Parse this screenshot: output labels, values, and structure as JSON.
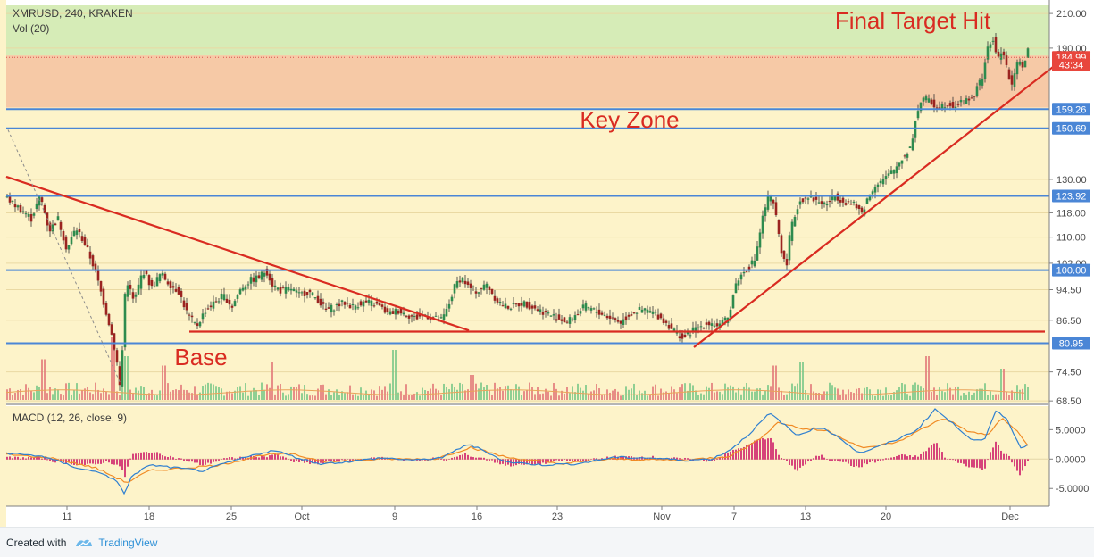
{
  "chart_data": [
    {
      "type": "candlestick",
      "title": "XMRUSD, 240, KRAKEN",
      "subtitle": "Vol (20)",
      "y_axis": {
        "scale": "log",
        "ylim": [
          68,
          215
        ],
        "ticks": [
          "210.00",
          "190.00",
          "130.00",
          "118.00",
          "110.00",
          "102.00",
          "94.50",
          "86.50",
          "74.50",
          "68.50"
        ]
      },
      "x_axis": {
        "ticks": [
          "11",
          "18",
          "25",
          "Oct",
          "9",
          "16",
          "23",
          "Nov",
          "7",
          "13",
          "20",
          "Dec"
        ]
      },
      "price_path": [
        [
          0,
          124
        ],
        [
          10,
          121
        ],
        [
          20,
          119
        ],
        [
          30,
          116
        ],
        [
          40,
          124
        ],
        [
          50,
          112
        ],
        [
          60,
          116
        ],
        [
          70,
          106
        ],
        [
          80,
          113
        ],
        [
          90,
          108
        ],
        [
          100,
          101
        ],
        [
          110,
          92
        ],
        [
          118,
          85
        ],
        [
          125,
          78
        ],
        [
          130,
          70
        ],
        [
          136,
          98
        ],
        [
          145,
          91
        ],
        [
          155,
          100
        ],
        [
          165,
          95
        ],
        [
          175,
          99
        ],
        [
          185,
          96
        ],
        [
          195,
          94
        ],
        [
          205,
          88
        ],
        [
          215,
          85
        ],
        [
          225,
          89
        ],
        [
          235,
          91
        ],
        [
          245,
          93
        ],
        [
          255,
          90
        ],
        [
          265,
          95
        ],
        [
          275,
          97
        ],
        [
          285,
          98
        ],
        [
          293,
          100
        ],
        [
          300,
          96
        ],
        [
          310,
          94
        ],
        [
          320,
          95
        ],
        [
          330,
          93
        ],
        [
          340,
          94
        ],
        [
          350,
          92
        ],
        [
          360,
          89
        ],
        [
          370,
          90
        ],
        [
          380,
          91
        ],
        [
          390,
          90
        ],
        [
          400,
          91
        ],
        [
          410,
          91
        ],
        [
          420,
          90
        ],
        [
          430,
          88
        ],
        [
          440,
          89
        ],
        [
          450,
          88
        ],
        [
          460,
          87
        ],
        [
          470,
          88
        ],
        [
          480,
          87
        ],
        [
          490,
          86.5
        ],
        [
          497,
          90
        ],
        [
          505,
          96
        ],
        [
          512,
          98
        ],
        [
          520,
          95
        ],
        [
          530,
          94
        ],
        [
          540,
          96
        ],
        [
          550,
          92
        ],
        [
          560,
          90
        ],
        [
          570,
          90
        ],
        [
          580,
          91
        ],
        [
          590,
          90
        ],
        [
          600,
          89
        ],
        [
          610,
          88
        ],
        [
          620,
          87
        ],
        [
          630,
          86
        ],
        [
          640,
          88
        ],
        [
          650,
          90
        ],
        [
          660,
          89
        ],
        [
          670,
          88
        ],
        [
          680,
          87
        ],
        [
          690,
          86
        ],
        [
          700,
          88
        ],
        [
          710,
          89
        ],
        [
          720,
          89
        ],
        [
          730,
          88
        ],
        [
          740,
          86
        ],
        [
          750,
          84
        ],
        [
          760,
          82
        ],
        [
          770,
          84
        ],
        [
          780,
          85
        ],
        [
          790,
          86
        ],
        [
          800,
          85
        ],
        [
          810,
          87
        ],
        [
          815,
          92
        ],
        [
          820,
          97
        ],
        [
          830,
          100
        ],
        [
          840,
          103
        ],
        [
          845,
          110
        ],
        [
          850,
          118
        ],
        [
          856,
          124
        ],
        [
          862,
          120
        ],
        [
          870,
          106
        ],
        [
          875,
          100
        ],
        [
          880,
          112
        ],
        [
          890,
          122
        ],
        [
          900,
          124
        ],
        [
          910,
          122
        ],
        [
          920,
          121
        ],
        [
          930,
          124
        ],
        [
          940,
          122
        ],
        [
          950,
          121
        ],
        [
          960,
          118
        ],
        [
          968,
          124
        ],
        [
          975,
          128
        ],
        [
          985,
          130
        ],
        [
          995,
          133
        ],
        [
          1005,
          138
        ],
        [
          1015,
          143
        ],
        [
          1022,
          158
        ],
        [
          1028,
          165
        ],
        [
          1035,
          163
        ],
        [
          1045,
          160
        ],
        [
          1055,
          162
        ],
        [
          1065,
          161
        ],
        [
          1075,
          163
        ],
        [
          1085,
          165
        ],
        [
          1095,
          175
        ],
        [
          1100,
          188
        ],
        [
          1107,
          195
        ],
        [
          1112,
          183
        ],
        [
          1118,
          190
        ],
        [
          1122,
          180
        ],
        [
          1127,
          170
        ],
        [
          1131,
          175
        ],
        [
          1136,
          185
        ],
        [
          1141,
          180
        ],
        [
          1146,
          188
        ]
      ],
      "volume_spikes": [
        [
          41,
          0.65
        ],
        [
          118,
          1.0
        ],
        [
          133,
          0.7
        ],
        [
          175,
          0.55
        ],
        [
          297,
          0.6
        ],
        [
          433,
          0.8
        ],
        [
          520,
          0.4
        ],
        [
          860,
          0.55
        ],
        [
          890,
          0.6
        ],
        [
          1030,
          0.7
        ],
        [
          1115,
          0.5
        ]
      ],
      "horizontal_levels": [
        {
          "label": "184.99",
          "value": 184.99,
          "color": "#e8463d"
        },
        {
          "label": "43:34",
          "value": 181.0,
          "color": "#e8463d"
        },
        {
          "label": "159.26",
          "value": 159.26,
          "color": "#4a86d6"
        },
        {
          "label": "150.69",
          "value": 150.69,
          "color": "#4a86d6"
        },
        {
          "label": "123.92",
          "value": 123.92,
          "color": "#4a86d6"
        },
        {
          "label": "100.00",
          "value": 100.0,
          "color": "#4a86d6"
        },
        {
          "label": "80.95",
          "value": 80.95,
          "color": "#4a86d6"
        }
      ],
      "zones": [
        {
          "from": 186,
          "to": 215,
          "color": "#d4ebb6"
        },
        {
          "from": 160,
          "to": 186,
          "color": "#f5c6a4"
        }
      ],
      "trendlines": [
        {
          "p1": [
            0,
            131
          ],
          "p2": [
            518,
            84
          ],
          "color": "#d92b21"
        },
        {
          "p1": [
            205,
            83.7
          ],
          "p2": [
            1163,
            83.7
          ],
          "color": "#d92b21"
        },
        {
          "p1": [
            770,
            80
          ],
          "p2": [
            1175,
            181
          ],
          "color": "#d92b21"
        }
      ],
      "annotations": [
        {
          "text": "Final Target Hit",
          "x": 1015,
          "y": 201,
          "color": "#d92b21"
        },
        {
          "text": "Key Zone",
          "x": 698,
          "y": 151,
          "color": "#d92b21"
        },
        {
          "text": "Base",
          "x": 218,
          "y": 76,
          "color": "#d92b21"
        }
      ]
    },
    {
      "type": "line",
      "title": "MACD (12, 26, close, 9)",
      "ylim": [
        -8,
        9
      ],
      "ticks": [
        "5.0000",
        "0.0000",
        "-5.0000"
      ],
      "series": [
        {
          "name": "MACD",
          "color": "#2e7fd0"
        },
        {
          "name": "Signal",
          "color": "#f08a24"
        },
        {
          "name": "Histogram",
          "color": "#d6437a"
        }
      ],
      "macd_path": [
        [
          0,
          1
        ],
        [
          40,
          0.5
        ],
        [
          80,
          -1.5
        ],
        [
          110,
          -2.5
        ],
        [
          125,
          -4
        ],
        [
          132,
          -6
        ],
        [
          140,
          -3
        ],
        [
          160,
          -1
        ],
        [
          190,
          -1.5
        ],
        [
          220,
          -2
        ],
        [
          250,
          -0.5
        ],
        [
          280,
          0.8
        ],
        [
          300,
          1.5
        ],
        [
          320,
          0.5
        ],
        [
          350,
          -0.8
        ],
        [
          380,
          -0.5
        ],
        [
          420,
          0.2
        ],
        [
          460,
          -0.2
        ],
        [
          490,
          0.3
        ],
        [
          515,
          2.5
        ],
        [
          530,
          1.8
        ],
        [
          560,
          -0.5
        ],
        [
          600,
          -1
        ],
        [
          640,
          -0.8
        ],
        [
          680,
          0.3
        ],
        [
          720,
          0.2
        ],
        [
          760,
          -0.2
        ],
        [
          790,
          0
        ],
        [
          810,
          1.5
        ],
        [
          830,
          4
        ],
        [
          855,
          7.8
        ],
        [
          870,
          6
        ],
        [
          885,
          4
        ],
        [
          910,
          5.5
        ],
        [
          930,
          4
        ],
        [
          955,
          1
        ],
        [
          975,
          2
        ],
        [
          1000,
          3.5
        ],
        [
          1020,
          5
        ],
        [
          1040,
          8.5
        ],
        [
          1060,
          6
        ],
        [
          1080,
          3.5
        ],
        [
          1095,
          3
        ],
        [
          1108,
          8.2
        ],
        [
          1120,
          7
        ],
        [
          1135,
          2
        ],
        [
          1146,
          2.5
        ]
      ],
      "signal_path": [
        [
          0,
          0.8
        ],
        [
          50,
          0.2
        ],
        [
          100,
          -1.5
        ],
        [
          135,
          -4
        ],
        [
          160,
          -2
        ],
        [
          200,
          -1.5
        ],
        [
          240,
          -1
        ],
        [
          290,
          0.8
        ],
        [
          320,
          0.8
        ],
        [
          360,
          -0.5
        ],
        [
          420,
          0
        ],
        [
          480,
          0
        ],
        [
          520,
          2
        ],
        [
          560,
          0.3
        ],
        [
          620,
          -0.8
        ],
        [
          680,
          0
        ],
        [
          760,
          -0.2
        ],
        [
          810,
          0.5
        ],
        [
          840,
          3
        ],
        [
          865,
          6.3
        ],
        [
          890,
          5.2
        ],
        [
          920,
          4.8
        ],
        [
          960,
          1.8
        ],
        [
          1000,
          3
        ],
        [
          1030,
          5.5
        ],
        [
          1050,
          7
        ],
        [
          1080,
          4.5
        ],
        [
          1100,
          4.2
        ],
        [
          1115,
          7
        ],
        [
          1130,
          5
        ],
        [
          1146,
          2
        ]
      ]
    }
  ],
  "footer": {
    "created_with": "Created with",
    "brand": "TradingView",
    "brand_color": "#2b8fd6"
  }
}
